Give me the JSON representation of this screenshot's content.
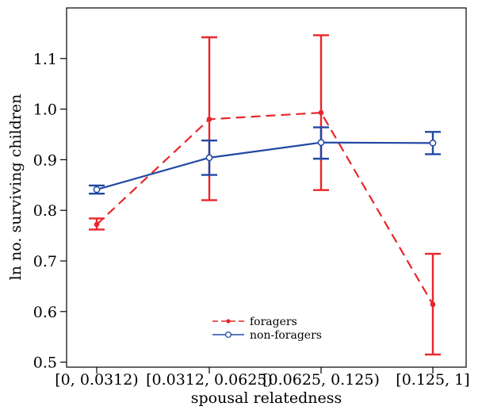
{
  "chart_data": {
    "type": "line",
    "xlabel": "spousal relatedness",
    "ylabel": "ln no. surviving children",
    "categories": [
      "[0, 0.0312)",
      "[0.0312, 0.0625)",
      "[0.0625, 0.125)",
      "[0.125, 1]"
    ],
    "yticks": [
      "0.5",
      "0.6",
      "0.7",
      "0.8",
      "0.9",
      "1.0",
      "1.1"
    ],
    "ylim": [
      0.49,
      1.2
    ],
    "grid": false,
    "legend_position": "bottom-center",
    "series": [
      {
        "name": "foragers",
        "color": "#e8262a",
        "line_style": "dashed",
        "marker": "filled-dot",
        "values": [
          0.772,
          0.98,
          0.993,
          0.614
        ],
        "err_low": [
          0.762,
          0.82,
          0.84,
          0.515
        ],
        "err_high": [
          0.784,
          1.142,
          1.146,
          0.714
        ]
      },
      {
        "name": "non-foragers",
        "color": "#2148a3",
        "line_style": "solid",
        "marker": "open-circle",
        "values": [
          0.841,
          0.904,
          0.934,
          0.933
        ],
        "err_low": [
          0.833,
          0.87,
          0.902,
          0.911
        ],
        "err_high": [
          0.849,
          0.938,
          0.964,
          0.955
        ]
      }
    ]
  }
}
